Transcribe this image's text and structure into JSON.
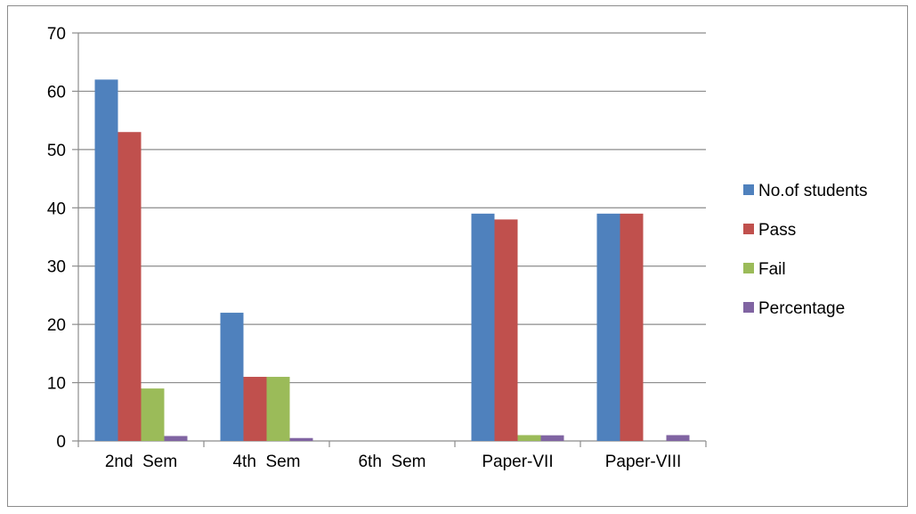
{
  "chart_data": {
    "type": "bar",
    "categories": [
      "2nd  Sem",
      "4th  Sem",
      "6th  Sem",
      "Paper-VII",
      "Paper-VIII"
    ],
    "series": [
      {
        "name": "No.of students",
        "color": "#4F81BD",
        "values": [
          62,
          22,
          0,
          39,
          39
        ]
      },
      {
        "name": "Pass",
        "color": "#C0504D",
        "values": [
          53,
          11,
          0,
          38,
          39
        ]
      },
      {
        "name": "Fail",
        "color": "#9BBB59",
        "values": [
          9,
          11,
          0,
          1,
          0
        ]
      },
      {
        "name": "Percentage",
        "color": "#8064A2",
        "values": [
          0.85,
          0.5,
          0,
          0.97,
          1
        ]
      }
    ],
    "ylim": [
      0,
      70
    ],
    "yticks": [
      0,
      10,
      20,
      30,
      40,
      50,
      60,
      70
    ],
    "grid": true,
    "legend": "right",
    "title": "",
    "xlabel": "",
    "ylabel": ""
  }
}
